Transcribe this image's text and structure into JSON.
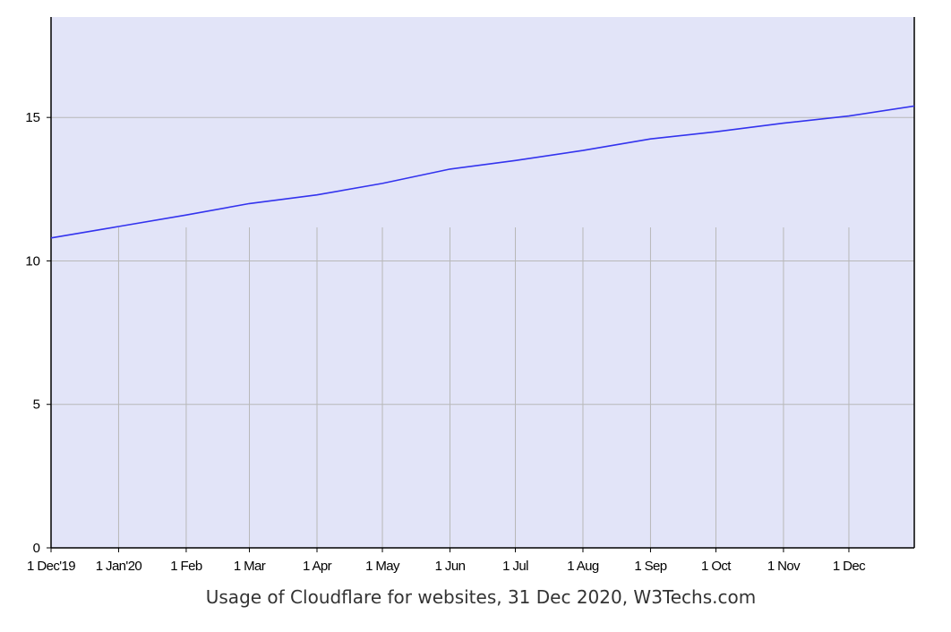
{
  "chart_data": {
    "type": "line",
    "title": "",
    "caption": "Usage of Cloudflare for websites, 31 Dec 2020, W3Techs.com",
    "xlabel": "",
    "ylabel": "",
    "x_ticks": [
      "1 Dec'19",
      "1 Jan'20",
      "1 Feb",
      "1 Mar",
      "1 Apr",
      "1 May",
      "1 Jun",
      "1 Jul",
      "1 Aug",
      "1 Sep",
      "1 Oct",
      "1 Nov",
      "1 Dec"
    ],
    "xlim": [
      "2019-12-01",
      "2020-12-31"
    ],
    "ylim": [
      0,
      18.5
    ],
    "y_ticks": [
      0,
      5,
      10,
      15
    ],
    "grid": true,
    "legend": "none",
    "series": [
      {
        "color": "#3333ee",
        "x": [
          "2019-12-01",
          "2020-01-01",
          "2020-02-01",
          "2020-03-01",
          "2020-04-01",
          "2020-05-01",
          "2020-06-01",
          "2020-07-01",
          "2020-08-01",
          "2020-09-01",
          "2020-10-01",
          "2020-11-01",
          "2020-12-01",
          "2020-12-31"
        ],
        "values": [
          10.8,
          11.2,
          11.6,
          12.0,
          12.3,
          12.7,
          13.2,
          13.5,
          13.85,
          14.25,
          14.5,
          14.8,
          15.05,
          15.4
        ]
      }
    ],
    "colors": {
      "plot_background": "#e2e4f8",
      "grid": "#b8b8b8",
      "axis": "#000000",
      "line": "#3333ee"
    }
  }
}
